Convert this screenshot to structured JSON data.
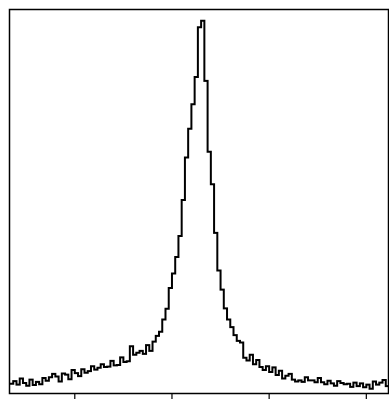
{
  "chart_data": {
    "type": "histogram",
    "title": "",
    "xlabel": "",
    "ylabel": "",
    "grid": false,
    "legend": "none",
    "xlim": [
      0,
      117
    ],
    "ylim": [
      0,
      100
    ],
    "x_tick_values": [
      20,
      50,
      80,
      110
    ],
    "x_tick_labels": [
      "",
      "",
      "",
      ""
    ],
    "series": [
      {
        "name": "",
        "color": "#000000",
        "bin_edges_start": 0,
        "bin_width": 1,
        "values": [
          2.4,
          3.1,
          2.2,
          3.8,
          2.6,
          1.9,
          3.5,
          2.1,
          2.9,
          2.3,
          3.9,
          3.2,
          4.1,
          5.0,
          4.3,
          3.0,
          5.1,
          4.8,
          3.6,
          6.0,
          5.2,
          4.4,
          6.2,
          5.3,
          5.7,
          7.0,
          6.1,
          6.6,
          7.5,
          6.8,
          6.9,
          8.4,
          7.2,
          7.3,
          9.3,
          8.1,
          8.3,
          12.2,
          10.0,
          10.5,
          11.0,
          10.2,
          12.5,
          11.0,
          13.4,
          14.9,
          16.0,
          19.2,
          22.0,
          27.4,
          31.2,
          35.5,
          41.0,
          50.4,
          61.5,
          69.0,
          75.4,
          82.5,
          95.5,
          97.2,
          81.5,
          63.0,
          54.5,
          41.8,
          32.0,
          27.0,
          22.1,
          19.2,
          17.2,
          15.1,
          13.6,
          13.2,
          9.2,
          8.5,
          10.0,
          7.5,
          8.6,
          6.8,
          6.0,
          7.0,
          5.5,
          6.7,
          4.7,
          5.8,
          3.8,
          4.5,
          5.0,
          3.5,
          3.0,
          3.3,
          2.9,
          4.1,
          3.3,
          3.3,
          2.8,
          3.9,
          2.8,
          2.3,
          3.2,
          2.5,
          1.9,
          3.1,
          2.6,
          2.3,
          2.4,
          1.6,
          2.7,
          1.8,
          2.5,
          1.5,
          2.2,
          1.1,
          3.0,
          2.2,
          2.7,
          3.4,
          1.8
        ]
      }
    ]
  }
}
